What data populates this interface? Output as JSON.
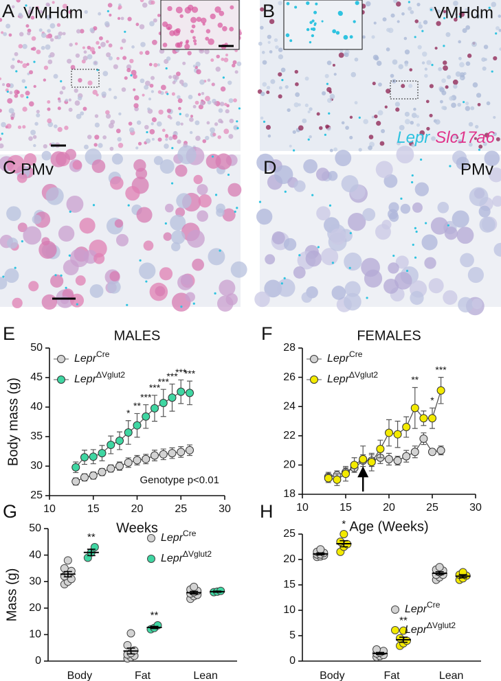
{
  "images": [
    {
      "panel": "A",
      "label": "VMHdm"
    },
    {
      "panel": "B",
      "label": "VMHdm",
      "legend": [
        {
          "text": "Lepr",
          "color": "#2fc3e0"
        },
        {
          "text": "Slc17a6",
          "color": "#e0338a"
        }
      ]
    },
    {
      "panel": "C",
      "label": "PMv"
    },
    {
      "panel": "D",
      "label": "PMv"
    }
  ],
  "chart_data": [
    {
      "type": "line",
      "panel": "E",
      "title": "MALES",
      "xlabel": "Weeks",
      "ylabel": "Body mass (g)",
      "note": "Genotype p<0.01",
      "x": [
        13,
        14,
        15,
        16,
        17,
        18,
        19,
        20,
        21,
        22,
        23,
        24,
        25,
        26
      ],
      "xlim": [
        10,
        30
      ],
      "xticks": [
        10,
        15,
        20,
        25,
        30
      ],
      "ylim": [
        25,
        50
      ],
      "yticks": [
        25,
        30,
        35,
        40,
        45,
        50
      ],
      "legend": "upper left",
      "series": [
        {
          "name": "Lepr",
          "superscript": "Cre",
          "color": "#d3d3d3",
          "values": [
            27.4,
            28.1,
            28.4,
            29.0,
            29.6,
            30.0,
            30.6,
            31.0,
            31.2,
            31.8,
            32.0,
            32.2,
            32.4,
            32.7
          ],
          "errors": [
            0.6,
            0.6,
            0.6,
            0.6,
            0.6,
            0.7,
            0.8,
            0.8,
            0.8,
            0.9,
            0.9,
            0.9,
            0.9,
            0.9
          ]
        },
        {
          "name": "Lepr",
          "superscript": "ΔVglut2",
          "color": "#3fd6a2",
          "values": [
            29.8,
            31.5,
            31.6,
            32.2,
            33.6,
            34.3,
            35.7,
            36.9,
            38.4,
            39.8,
            40.7,
            41.6,
            42.6,
            42.4
          ],
          "errors": [
            0.9,
            1.2,
            1.2,
            1.3,
            1.5,
            1.5,
            2.0,
            2.0,
            2.0,
            2.2,
            2.3,
            2.3,
            2.0,
            2.0
          ]
        }
      ],
      "annotations": [
        {
          "x": 19,
          "label": "*"
        },
        {
          "x": 20,
          "label": "**"
        },
        {
          "x": 21,
          "label": "***"
        },
        {
          "x": 22,
          "label": "***"
        },
        {
          "x": 23,
          "label": "***"
        },
        {
          "x": 24,
          "label": "***"
        },
        {
          "x": 25,
          "label": "***"
        },
        {
          "x": 26,
          "label": "***"
        }
      ]
    },
    {
      "type": "line",
      "panel": "F",
      "title": "FEMALES",
      "xlabel": "Age (Weeks)",
      "arrow_x": 17,
      "x": [
        13,
        14,
        15,
        16,
        17,
        18,
        19,
        20,
        21,
        22,
        23,
        24,
        25,
        26
      ],
      "xlim": [
        10,
        30
      ],
      "xticks": [
        10,
        15,
        20,
        25,
        30
      ],
      "ylim": [
        18,
        28
      ],
      "yticks": [
        18,
        20,
        22,
        24,
        26,
        28
      ],
      "legend": "upper left",
      "series": [
        {
          "name": "Lepr",
          "superscript": "Cre",
          "color": "#d3d3d3",
          "values": [
            19.2,
            19.3,
            19.5,
            19.8,
            20.3,
            20.3,
            20.5,
            20.4,
            20.3,
            20.6,
            20.9,
            21.8,
            20.9,
            21.0
          ],
          "errors": [
            0.3,
            0.3,
            0.3,
            0.3,
            0.4,
            0.4,
            0.4,
            0.4,
            0.3,
            0.4,
            0.4,
            0.4,
            0.2,
            0.3
          ]
        },
        {
          "name": "Lepr",
          "superscript": "ΔVglut2",
          "color": "#f3ea00",
          "values": [
            19.1,
            19.0,
            19.4,
            20.0,
            20.4,
            20.2,
            21.1,
            22.2,
            22.1,
            22.6,
            23.9,
            23.2,
            23.2,
            25.1
          ],
          "errors": [
            0.3,
            0.4,
            0.5,
            0.5,
            0.9,
            0.6,
            0.6,
            0.9,
            0.9,
            0.7,
            1.4,
            0.5,
            0.7,
            0.9
          ]
        }
      ],
      "annotations": [
        {
          "x": 23,
          "label": "**"
        },
        {
          "x": 25,
          "label": "*"
        },
        {
          "x": 26,
          "label": "***"
        }
      ]
    },
    {
      "type": "dot",
      "panel": "G",
      "ylabel": "Mass (g)",
      "categories": [
        "Body",
        "Fat",
        "Lean"
      ],
      "ylim": [
        0,
        50
      ],
      "yticks": [
        0,
        10,
        20,
        30,
        40,
        50
      ],
      "legend": "upper right",
      "series": [
        {
          "name": "Lepr",
          "superscript": "Cre",
          "color": "#d3d3d3",
          "points": [
            [
              29,
              30,
              31,
              32,
              33,
              34,
              35,
              38
            ],
            [
              1,
              1.5,
              2,
              2.5,
              3,
              4,
              6,
              10.5
            ],
            [
              23.5,
              24.5,
              25,
              25.5,
              26,
              26.5,
              27,
              28
            ]
          ],
          "mean": [
            32.8,
            3.8,
            25.8
          ],
          "sem": [
            1.0,
            1.1,
            0.5
          ]
        },
        {
          "name": "Lepr",
          "superscript": "ΔVglut2",
          "color": "#3fd6a2",
          "points": [
            [
              39,
              41,
              43
            ],
            [
              12,
              12.5,
              13.5
            ],
            [
              26,
              26.2,
              26.5
            ]
          ],
          "mean": [
            41,
            12.7,
            26.2
          ],
          "sem": [
            1.2,
            0.4,
            0.2
          ],
          "annotations": [
            {
              "category": 0,
              "label": "**"
            },
            {
              "category": 1,
              "label": "**"
            }
          ]
        }
      ]
    },
    {
      "type": "dot",
      "panel": "H",
      "categories": [
        "Body",
        "Fat",
        "Lean"
      ],
      "ylim": [
        0,
        25
      ],
      "yticks": [
        0,
        5,
        10,
        15,
        20,
        25
      ],
      "legend": "lower right",
      "series": [
        {
          "name": "Lepr",
          "superscript": "Cre",
          "color": "#d3d3d3",
          "points": [
            [
              20.5,
              20.6,
              20.8,
              21,
              21,
              21.3,
              21.5,
              22
            ],
            [
              0.8,
              1,
              1.2,
              1.5,
              1.7,
              2,
              2.3
            ],
            [
              16,
              16.5,
              17,
              17,
              17.5,
              17.8,
              18,
              18.5
            ]
          ],
          "mean": [
            21.1,
            1.5,
            17.3
          ],
          "sem": [
            0.2,
            0.2,
            0.3
          ]
        },
        {
          "name": "Lepr",
          "superscript": "ΔVglut2",
          "color": "#f3ea00",
          "points": [
            [
              21.5,
              22.5,
              23,
              23.5,
              25
            ],
            [
              3,
              3.5,
              4,
              4.5,
              6
            ],
            [
              16,
              16.3,
              16.8,
              17,
              17.5
            ]
          ],
          "mean": [
            23.1,
            4.2,
            16.7
          ],
          "sem": [
            0.6,
            0.5,
            0.3
          ],
          "annotations": [
            {
              "category": 0,
              "label": "*"
            },
            {
              "category": 1,
              "label": "**"
            }
          ]
        }
      ]
    }
  ]
}
